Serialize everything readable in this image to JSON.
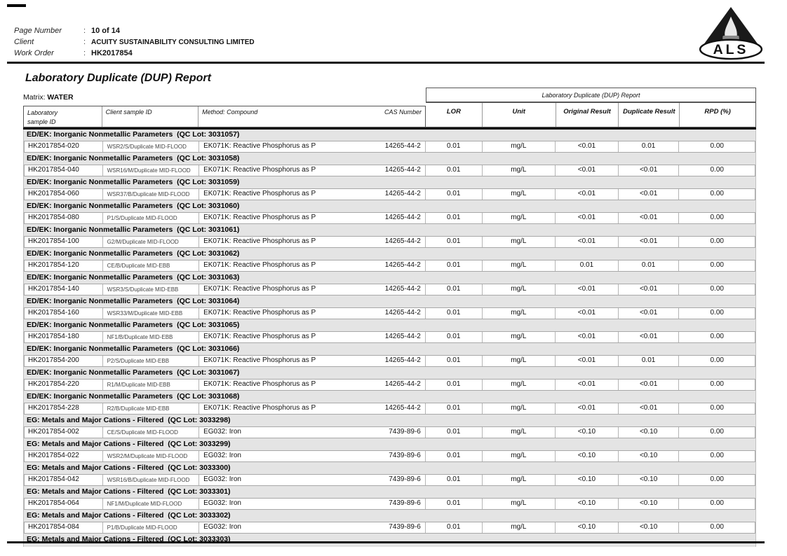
{
  "header": {
    "fields": [
      {
        "label": "Page Number",
        "colon": ":",
        "value": "10 of 14"
      },
      {
        "label": "Client",
        "colon": ":",
        "value": "ACUITY SUSTAINABILITY CONSULTING LIMITED"
      },
      {
        "label": "Work Order",
        "colon": ":",
        "value": "HK2017854"
      }
    ],
    "logo_text": "ALS"
  },
  "title": "Laboratory Duplicate (DUP) Report",
  "matrix_label": "Matrix:",
  "matrix_value": "WATER",
  "colors": {
    "group_header_bg": "#e4e4e4",
    "rule": "#111111",
    "logo": "#1a1a1a"
  },
  "table": {
    "span_header": "Laboratory Duplicate (DUP) Report",
    "columns": {
      "lab_line1": "Laboratory",
      "lab_line2": "sample ID",
      "client": "Client sample ID",
      "method": "Method: Compound",
      "cas": "CAS Number",
      "lor": "LOR",
      "unit": "Unit",
      "original": "Original Result",
      "duplicate": "Duplicate Result",
      "rpd": "RPD (%)"
    },
    "groups": [
      {
        "header": "ED/EK: Inorganic Nonmetallic Parameters  (QC Lot: 3031057)",
        "rows": [
          {
            "lab": "HK2017854-020",
            "client": "WSR2/S/Duplicate MID-FLOOD",
            "method": "EK071K: Reactive Phosphorus as P",
            "cas": "14265-44-2",
            "lor": "0.01",
            "unit": "mg/L",
            "original": "<0.01",
            "duplicate": "0.01",
            "rpd": "0.00"
          }
        ]
      },
      {
        "header": "ED/EK: Inorganic Nonmetallic Parameters  (QC Lot: 3031058)",
        "rows": [
          {
            "lab": "HK2017854-040",
            "client": "WSR16/M/Duplicate MID-FLOOD",
            "method": "EK071K: Reactive Phosphorus as P",
            "cas": "14265-44-2",
            "lor": "0.01",
            "unit": "mg/L",
            "original": "<0.01",
            "duplicate": "<0.01",
            "rpd": "0.00"
          }
        ]
      },
      {
        "header": "ED/EK: Inorganic Nonmetallic Parameters  (QC Lot: 3031059)",
        "rows": [
          {
            "lab": "HK2017854-060",
            "client": "WSR37/B/Duplicate MID-FLOOD",
            "method": "EK071K: Reactive Phosphorus as P",
            "cas": "14265-44-2",
            "lor": "0.01",
            "unit": "mg/L",
            "original": "<0.01",
            "duplicate": "<0.01",
            "rpd": "0.00"
          }
        ]
      },
      {
        "header": "ED/EK: Inorganic Nonmetallic Parameters  (QC Lot: 3031060)",
        "rows": [
          {
            "lab": "HK2017854-080",
            "client": "P1/S/Duplicate MID-FLOOD",
            "method": "EK071K: Reactive Phosphorus as P",
            "cas": "14265-44-2",
            "lor": "0.01",
            "unit": "mg/L",
            "original": "<0.01",
            "duplicate": "<0.01",
            "rpd": "0.00"
          }
        ]
      },
      {
        "header": "ED/EK: Inorganic Nonmetallic Parameters  (QC Lot: 3031061)",
        "rows": [
          {
            "lab": "HK2017854-100",
            "client": "G2/M/Duplicate MID-FLOOD",
            "method": "EK071K: Reactive Phosphorus as P",
            "cas": "14265-44-2",
            "lor": "0.01",
            "unit": "mg/L",
            "original": "<0.01",
            "duplicate": "<0.01",
            "rpd": "0.00"
          }
        ]
      },
      {
        "header": "ED/EK: Inorganic Nonmetallic Parameters  (QC Lot: 3031062)",
        "rows": [
          {
            "lab": "HK2017854-120",
            "client": "CE/B/Duplicate MID-EBB",
            "method": "EK071K: Reactive Phosphorus as P",
            "cas": "14265-44-2",
            "lor": "0.01",
            "unit": "mg/L",
            "original": "0.01",
            "duplicate": "0.01",
            "rpd": "0.00"
          }
        ]
      },
      {
        "header": "ED/EK: Inorganic Nonmetallic Parameters  (QC Lot: 3031063)",
        "rows": [
          {
            "lab": "HK2017854-140",
            "client": "WSR3/S/Duplicate MID-EBB",
            "method": "EK071K: Reactive Phosphorus as P",
            "cas": "14265-44-2",
            "lor": "0.01",
            "unit": "mg/L",
            "original": "<0.01",
            "duplicate": "<0.01",
            "rpd": "0.00"
          }
        ]
      },
      {
        "header": "ED/EK: Inorganic Nonmetallic Parameters  (QC Lot: 3031064)",
        "rows": [
          {
            "lab": "HK2017854-160",
            "client": "WSR33/M/Duplicate MID-EBB",
            "method": "EK071K: Reactive Phosphorus as P",
            "cas": "14265-44-2",
            "lor": "0.01",
            "unit": "mg/L",
            "original": "<0.01",
            "duplicate": "<0.01",
            "rpd": "0.00"
          }
        ]
      },
      {
        "header": "ED/EK: Inorganic Nonmetallic Parameters  (QC Lot: 3031065)",
        "rows": [
          {
            "lab": "HK2017854-180",
            "client": "NF1/B/Duplicate MID-EBB",
            "method": "EK071K: Reactive Phosphorus as P",
            "cas": "14265-44-2",
            "lor": "0.01",
            "unit": "mg/L",
            "original": "<0.01",
            "duplicate": "<0.01",
            "rpd": "0.00"
          }
        ]
      },
      {
        "header": "ED/EK: Inorganic Nonmetallic Parameters  (QC Lot: 3031066)",
        "rows": [
          {
            "lab": "HK2017854-200",
            "client": "P2/S/Duplicate MID-EBB",
            "method": "EK071K: Reactive Phosphorus as P",
            "cas": "14265-44-2",
            "lor": "0.01",
            "unit": "mg/L",
            "original": "<0.01",
            "duplicate": "0.01",
            "rpd": "0.00"
          }
        ]
      },
      {
        "header": "ED/EK: Inorganic Nonmetallic Parameters  (QC Lot: 3031067)",
        "rows": [
          {
            "lab": "HK2017854-220",
            "client": "R1/M/Duplicate MID-EBB",
            "method": "EK071K: Reactive Phosphorus as P",
            "cas": "14265-44-2",
            "lor": "0.01",
            "unit": "mg/L",
            "original": "<0.01",
            "duplicate": "<0.01",
            "rpd": "0.00"
          }
        ]
      },
      {
        "header": "ED/EK: Inorganic Nonmetallic Parameters  (QC Lot: 3031068)",
        "rows": [
          {
            "lab": "HK2017854-228",
            "client": "R2/B/Duplicate MID-EBB",
            "method": "EK071K: Reactive Phosphorus as P",
            "cas": "14265-44-2",
            "lor": "0.01",
            "unit": "mg/L",
            "original": "<0.01",
            "duplicate": "<0.01",
            "rpd": "0.00"
          }
        ]
      },
      {
        "header": "EG: Metals and Major Cations - Filtered  (QC Lot: 3033298)",
        "rows": [
          {
            "lab": "HK2017854-002",
            "client": "CE/S/Duplicate MID-FLOOD",
            "method": "EG032: Iron",
            "cas": "7439-89-6",
            "lor": "0.01",
            "unit": "mg/L",
            "original": "<0.10",
            "duplicate": "<0.10",
            "rpd": "0.00"
          }
        ]
      },
      {
        "header": "EG: Metals and Major Cations - Filtered  (QC Lot: 3033299)",
        "rows": [
          {
            "lab": "HK2017854-022",
            "client": "WSR2/M/Duplicate MID-FLOOD",
            "method": "EG032: Iron",
            "cas": "7439-89-6",
            "lor": "0.01",
            "unit": "mg/L",
            "original": "<0.10",
            "duplicate": "<0.10",
            "rpd": "0.00"
          }
        ]
      },
      {
        "header": "EG: Metals and Major Cations - Filtered  (QC Lot: 3033300)",
        "rows": [
          {
            "lab": "HK2017854-042",
            "client": "WSR16/B/Duplicate MID-FLOOD",
            "method": "EG032: Iron",
            "cas": "7439-89-6",
            "lor": "0.01",
            "unit": "mg/L",
            "original": "<0.10",
            "duplicate": "<0.10",
            "rpd": "0.00"
          }
        ]
      },
      {
        "header": "EG: Metals and Major Cations - Filtered  (QC Lot: 3033301)",
        "rows": [
          {
            "lab": "HK2017854-064",
            "client": "NF1/M/Duplicate MID-FLOOD",
            "method": "EG032: Iron",
            "cas": "7439-89-6",
            "lor": "0.01",
            "unit": "mg/L",
            "original": "<0.10",
            "duplicate": "<0.10",
            "rpd": "0.00"
          }
        ]
      },
      {
        "header": "EG: Metals and Major Cations - Filtered  (QC Lot: 3033302)",
        "rows": [
          {
            "lab": "HK2017854-084",
            "client": "P1/B/Duplicate MID-FLOOD",
            "method": "EG032: Iron",
            "cas": "7439-89-6",
            "lor": "0.01",
            "unit": "mg/L",
            "original": "<0.10",
            "duplicate": "<0.10",
            "rpd": "0.00"
          }
        ]
      },
      {
        "header": "EG: Metals and Major Cations - Filtered  (QC Lot: 3033303)",
        "rows": []
      }
    ]
  }
}
